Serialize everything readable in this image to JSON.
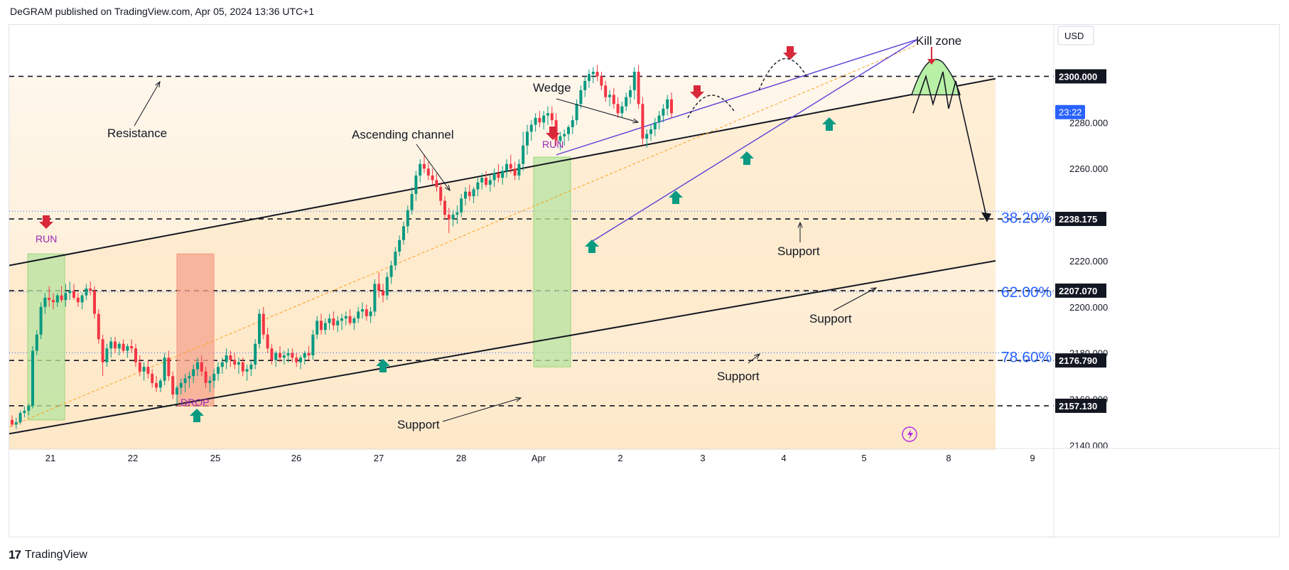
{
  "header": {
    "publisher_text": "DeGRAM published on TradingView.com, Apr 05, 2024 13:36 UTC+1"
  },
  "footer": {
    "brand": "TradingView",
    "logo_icon": "tradingview-logo-icon"
  },
  "colors": {
    "up": "#089981",
    "down": "#f23645",
    "resistance_band": "#fdeed8",
    "channel_fill": "#fde7c4",
    "run_box": "#b7e4a1",
    "drop_box": "#f7a48e",
    "kill_zone": "#b8f0a6",
    "fib_label": "#2962ff",
    "arrow_down": "#d8283a",
    "arrow_up": "#0a9a82",
    "label_purple": "#9c27b0",
    "wedge": "#5b3fd6"
  },
  "chart_data": {
    "type": "candlestick",
    "symbol_currency": "USD",
    "x_tick_labels": [
      "21",
      "22",
      "25",
      "26",
      "27",
      "28",
      "Apr",
      "2",
      "3",
      "4",
      "5",
      "8",
      "9"
    ],
    "ylim": [
      2128,
      2325
    ],
    "y_tick_labels": [
      "2140.000",
      "2160.000",
      "2180.000",
      "2200.000",
      "2220.000",
      "2260.000",
      "2280.000"
    ],
    "price_levels": [
      {
        "value": "2300.000",
        "price": 2300
      },
      {
        "value": "2238.175",
        "price": 2238.175
      },
      {
        "value": "2207.070",
        "price": 2207.07
      },
      {
        "value": "2176.790",
        "price": 2176.79
      },
      {
        "value": "2157.130",
        "price": 2157.13
      }
    ],
    "countdown": "23:22",
    "fib_levels": [
      {
        "label": "38.20%",
        "price": 2240.5
      },
      {
        "label": "62.00%",
        "price": 2208.3
      },
      {
        "label": "78.60%",
        "price": 2180.1
      }
    ],
    "annotations": {
      "resistance": "Resistance",
      "ascending_channel": "Ascending channel",
      "wedge": "Wedge",
      "kill_zone": "Kill zone",
      "support_1": "Support",
      "support_2": "Support",
      "support_3": "Support",
      "support_4": "Support",
      "run_1": "RUN",
      "run_2": "RUN",
      "drop": "DROP"
    },
    "candles": [
      [
        2151,
        2153,
        2148,
        2149
      ],
      [
        2149,
        2152,
        2147,
        2150
      ],
      [
        2150,
        2155,
        2149,
        2154
      ],
      [
        2154,
        2157,
        2152,
        2155
      ],
      [
        2155,
        2158,
        2153,
        2157
      ],
      [
        2157,
        2183,
        2156,
        2181
      ],
      [
        2181,
        2190,
        2179,
        2188
      ],
      [
        2188,
        2202,
        2186,
        2200
      ],
      [
        2200,
        2206,
        2197,
        2204
      ],
      [
        2204,
        2209,
        2200,
        2203
      ],
      [
        2203,
        2206,
        2199,
        2202
      ],
      [
        2202,
        2206,
        2200,
        2205
      ],
      [
        2205,
        2209,
        2202,
        2203
      ],
      [
        2203,
        2210,
        2200,
        2206
      ],
      [
        2206,
        2211,
        2203,
        2207
      ],
      [
        2207,
        2210,
        2203,
        2204
      ],
      [
        2204,
        2206,
        2200,
        2202
      ],
      [
        2202,
        2206,
        2199,
        2205
      ],
      [
        2205,
        2210,
        2203,
        2208
      ],
      [
        2208,
        2211,
        2205,
        2207
      ],
      [
        2207,
        2209,
        2195,
        2197
      ],
      [
        2197,
        2199,
        2184,
        2186
      ],
      [
        2186,
        2188,
        2170,
        2176
      ],
      [
        2176,
        2184,
        2174,
        2182
      ],
      [
        2182,
        2187,
        2178,
        2185
      ],
      [
        2185,
        2187,
        2180,
        2182
      ],
      [
        2182,
        2185,
        2179,
        2184
      ],
      [
        2184,
        2186,
        2180,
        2181
      ],
      [
        2181,
        2184,
        2178,
        2183
      ],
      [
        2183,
        2186,
        2180,
        2182
      ],
      [
        2182,
        2184,
        2174,
        2176
      ],
      [
        2176,
        2179,
        2170,
        2172
      ],
      [
        2172,
        2176,
        2168,
        2174
      ],
      [
        2174,
        2177,
        2169,
        2171
      ],
      [
        2171,
        2173,
        2165,
        2167
      ],
      [
        2167,
        2170,
        2163,
        2165
      ],
      [
        2165,
        2169,
        2163,
        2168
      ],
      [
        2168,
        2180,
        2166,
        2178
      ],
      [
        2178,
        2181,
        2168,
        2170
      ],
      [
        2170,
        2172,
        2160,
        2162
      ],
      [
        2162,
        2166,
        2158,
        2165
      ],
      [
        2165,
        2169,
        2162,
        2167
      ],
      [
        2167,
        2171,
        2163,
        2169
      ],
      [
        2169,
        2172,
        2165,
        2170
      ],
      [
        2170,
        2175,
        2167,
        2173
      ],
      [
        2173,
        2178,
        2170,
        2176
      ],
      [
        2176,
        2179,
        2170,
        2172
      ],
      [
        2172,
        2174,
        2165,
        2167
      ],
      [
        2167,
        2170,
        2163,
        2168
      ],
      [
        2168,
        2173,
        2165,
        2171
      ],
      [
        2171,
        2176,
        2168,
        2174
      ],
      [
        2174,
        2178,
        2171,
        2176
      ],
      [
        2176,
        2182,
        2173,
        2179
      ],
      [
        2179,
        2181,
        2174,
        2177
      ],
      [
        2177,
        2180,
        2173,
        2175
      ],
      [
        2175,
        2178,
        2171,
        2176
      ],
      [
        2176,
        2178,
        2170,
        2172
      ],
      [
        2172,
        2175,
        2168,
        2173
      ],
      [
        2173,
        2177,
        2170,
        2175
      ],
      [
        2175,
        2186,
        2173,
        2184
      ],
      [
        2184,
        2199,
        2182,
        2197
      ],
      [
        2197,
        2200,
        2186,
        2188
      ],
      [
        2188,
        2191,
        2180,
        2182
      ],
      [
        2182,
        2184,
        2175,
        2177
      ],
      [
        2177,
        2181,
        2174,
        2180
      ],
      [
        2180,
        2183,
        2176,
        2178
      ],
      [
        2178,
        2181,
        2175,
        2179
      ],
      [
        2179,
        2182,
        2176,
        2180
      ],
      [
        2180,
        2182,
        2176,
        2178
      ],
      [
        2178,
        2180,
        2174,
        2176
      ],
      [
        2176,
        2179,
        2173,
        2178
      ],
      [
        2178,
        2181,
        2175,
        2180
      ],
      [
        2180,
        2183,
        2177,
        2179
      ],
      [
        2179,
        2190,
        2177,
        2188
      ],
      [
        2188,
        2196,
        2186,
        2194
      ],
      [
        2194,
        2197,
        2188,
        2190
      ],
      [
        2190,
        2195,
        2188,
        2193
      ],
      [
        2193,
        2197,
        2190,
        2195
      ],
      [
        2195,
        2198,
        2190,
        2192
      ],
      [
        2192,
        2196,
        2189,
        2194
      ],
      [
        2194,
        2197,
        2190,
        2195
      ],
      [
        2195,
        2198,
        2192,
        2196
      ],
      [
        2196,
        2199,
        2192,
        2193
      ],
      [
        2193,
        2196,
        2190,
        2195
      ],
      [
        2195,
        2200,
        2193,
        2198
      ],
      [
        2198,
        2202,
        2195,
        2199
      ],
      [
        2199,
        2201,
        2194,
        2196
      ],
      [
        2196,
        2200,
        2193,
        2198
      ],
      [
        2198,
        2212,
        2196,
        2210
      ],
      [
        2210,
        2215,
        2204,
        2207
      ],
      [
        2207,
        2210,
        2202,
        2205
      ],
      [
        2205,
        2215,
        2203,
        2213
      ],
      [
        2213,
        2220,
        2210,
        2218
      ],
      [
        2218,
        2226,
        2216,
        2224
      ],
      [
        2224,
        2231,
        2222,
        2229
      ],
      [
        2229,
        2237,
        2227,
        2235
      ],
      [
        2235,
        2244,
        2232,
        2242
      ],
      [
        2242,
        2252,
        2240,
        2249
      ],
      [
        2249,
        2259,
        2246,
        2257
      ],
      [
        2257,
        2264,
        2254,
        2262
      ],
      [
        2262,
        2266,
        2258,
        2260
      ],
      [
        2260,
        2263,
        2255,
        2257
      ],
      [
        2257,
        2260,
        2253,
        2255
      ],
      [
        2255,
        2258,
        2250,
        2252
      ],
      [
        2252,
        2254,
        2244,
        2246
      ],
      [
        2246,
        2248,
        2238,
        2240
      ],
      [
        2240,
        2243,
        2232,
        2238
      ],
      [
        2238,
        2242,
        2235,
        2240
      ],
      [
        2240,
        2244,
        2236,
        2241
      ],
      [
        2241,
        2249,
        2239,
        2247
      ],
      [
        2247,
        2252,
        2244,
        2250
      ],
      [
        2250,
        2253,
        2246,
        2248
      ],
      [
        2248,
        2252,
        2245,
        2251
      ],
      [
        2251,
        2256,
        2248,
        2254
      ],
      [
        2254,
        2258,
        2251,
        2256
      ],
      [
        2256,
        2259,
        2252,
        2253
      ],
      [
        2253,
        2257,
        2250,
        2255
      ],
      [
        2255,
        2260,
        2252,
        2258
      ],
      [
        2258,
        2262,
        2254,
        2256
      ],
      [
        2256,
        2261,
        2253,
        2259
      ],
      [
        2259,
        2264,
        2256,
        2262
      ],
      [
        2262,
        2266,
        2258,
        2260
      ],
      [
        2260,
        2263,
        2255,
        2257
      ],
      [
        2257,
        2264,
        2255,
        2262
      ],
      [
        2262,
        2276,
        2259,
        2270
      ],
      [
        2270,
        2279,
        2266,
        2276
      ],
      [
        2276,
        2281,
        2272,
        2279
      ],
      [
        2279,
        2284,
        2276,
        2282
      ],
      [
        2282,
        2285,
        2278,
        2280
      ],
      [
        2280,
        2285,
        2277,
        2283
      ],
      [
        2283,
        2287,
        2279,
        2284
      ],
      [
        2284,
        2287,
        2279,
        2281
      ],
      [
        2281,
        2284,
        2270,
        2272
      ],
      [
        2272,
        2276,
        2268,
        2274
      ],
      [
        2274,
        2277,
        2270,
        2275
      ],
      [
        2275,
        2279,
        2272,
        2278
      ],
      [
        2278,
        2283,
        2275,
        2281
      ],
      [
        2281,
        2290,
        2279,
        2288
      ],
      [
        2288,
        2296,
        2286,
        2294
      ],
      [
        2294,
        2300,
        2291,
        2298
      ],
      [
        2298,
        2303,
        2295,
        2301
      ],
      [
        2301,
        2304,
        2297,
        2302
      ],
      [
        2302,
        2305,
        2298,
        2300
      ],
      [
        2300,
        2302,
        2294,
        2296
      ],
      [
        2296,
        2298,
        2289,
        2291
      ],
      [
        2291,
        2294,
        2287,
        2292
      ],
      [
        2292,
        2295,
        2286,
        2288
      ],
      [
        2288,
        2291,
        2282,
        2284
      ],
      [
        2284,
        2289,
        2282,
        2287
      ],
      [
        2287,
        2293,
        2285,
        2291
      ],
      [
        2291,
        2296,
        2288,
        2294
      ],
      [
        2294,
        2304,
        2290,
        2302
      ],
      [
        2302,
        2305,
        2286,
        2288
      ],
      [
        2288,
        2291,
        2270,
        2273
      ],
      [
        2273,
        2277,
        2269,
        2275
      ],
      [
        2275,
        2279,
        2272,
        2277
      ],
      [
        2277,
        2282,
        2274,
        2280
      ],
      [
        2280,
        2285,
        2277,
        2283
      ],
      [
        2283,
        2288,
        2280,
        2286
      ],
      [
        2286,
        2292,
        2283,
        2290
      ],
      [
        2290,
        2293,
        2282,
        2284
      ]
    ]
  }
}
